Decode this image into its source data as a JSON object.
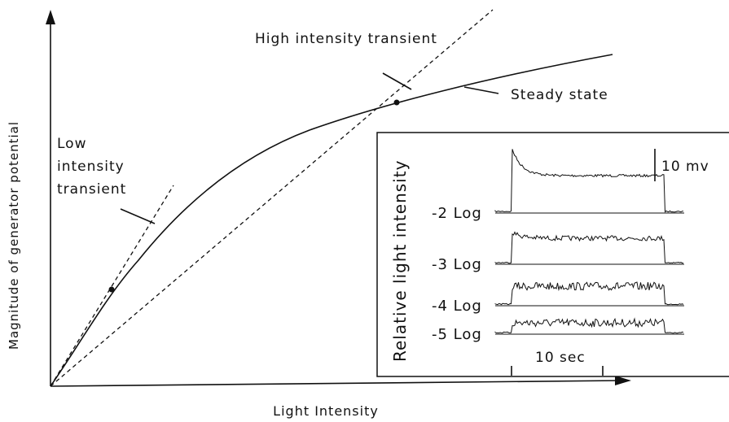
{
  "labels": {
    "high": "High intensity transient",
    "steady": "Steady state",
    "low": [
      "Low",
      "intensity",
      "transient"
    ],
    "y_axis": "Magnitude of generator potential",
    "x_axis": "Light Intensity"
  },
  "inset": {
    "y_axis": "Relative light intensity",
    "traces": [
      "-2 Log",
      "-3 Log",
      "-4 Log",
      "-5 Log"
    ],
    "scale_v": "10 mv",
    "scale_t": "10 sec"
  }
}
